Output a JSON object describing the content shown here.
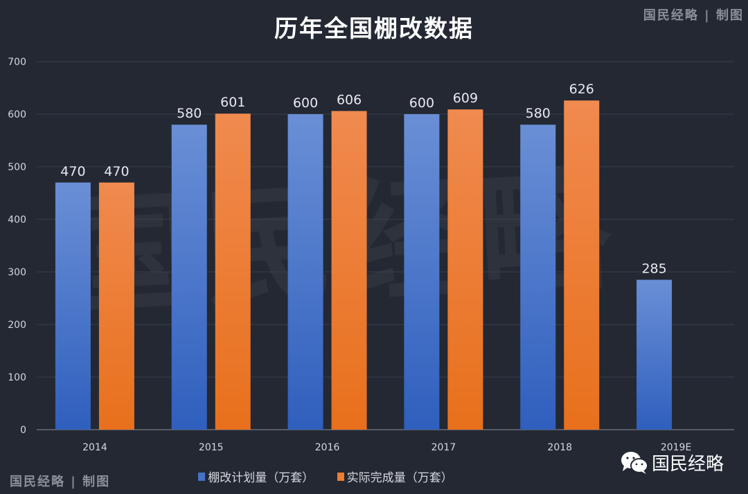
{
  "watermark_top": "国民经略 | 制图",
  "watermark_bottom": "国民经略 | 制图",
  "background_watermark": "国民经略",
  "brand": {
    "icon": "wechat-icon",
    "label": "国民经略"
  },
  "chart_data": {
    "type": "bar",
    "title": "历年全国棚改数据",
    "categories": [
      "2014",
      "2015",
      "2016",
      "2017",
      "2018",
      "2019E"
    ],
    "series": [
      {
        "name": "棚改计划量（万套）",
        "color": "#4472c4",
        "values": [
          470,
          580,
          600,
          600,
          580,
          285
        ]
      },
      {
        "name": "实际完成量（万套）",
        "color": "#ed7d31",
        "values": [
          470,
          601,
          606,
          609,
          626,
          null
        ]
      }
    ],
    "ylim": [
      0,
      700
    ],
    "yticks": [
      0,
      100,
      200,
      300,
      400,
      500,
      600,
      700
    ],
    "grid": true,
    "legend": "bottom",
    "data_labels": true
  }
}
